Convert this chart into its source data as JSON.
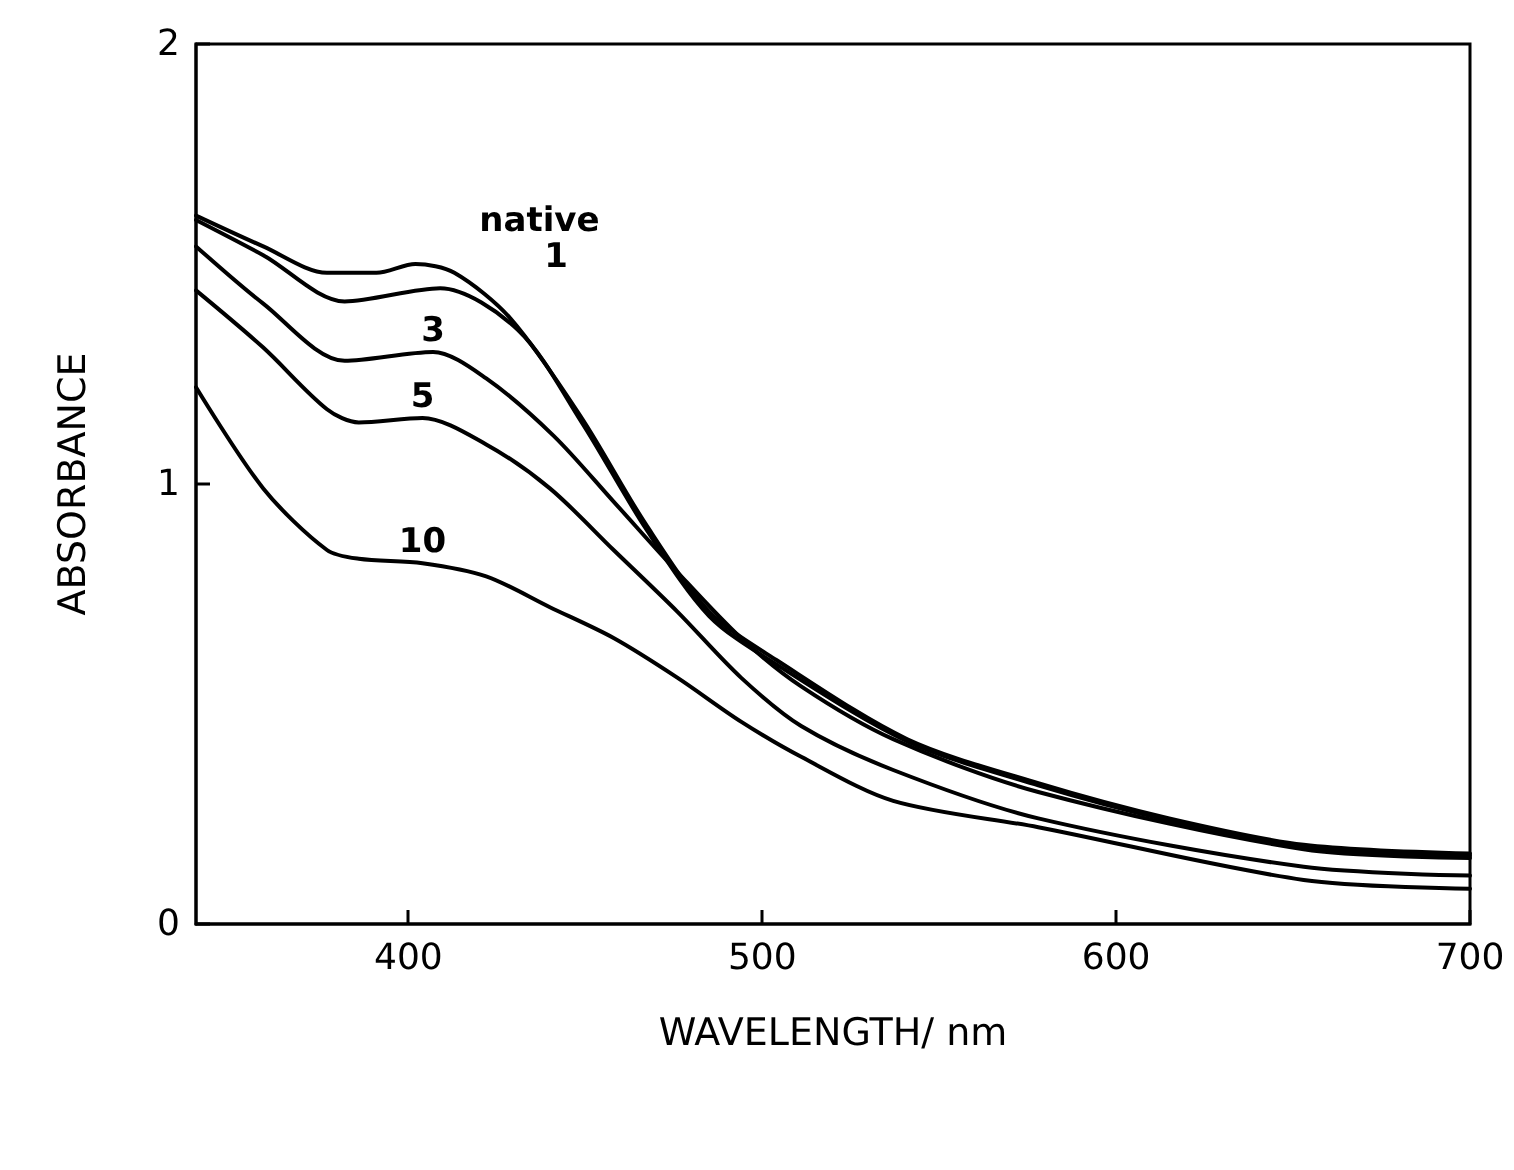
{
  "chart_data": {
    "type": "line",
    "xlabel": "WAVELENGTH/ nm",
    "ylabel": "ABSORBANCE",
    "xlim": [
      340,
      700
    ],
    "xticks": [
      400,
      500,
      600,
      700
    ],
    "ylim": [
      0,
      2
    ],
    "yticks": [
      0,
      1,
      2
    ],
    "grid": false,
    "legend": false,
    "marker": "none",
    "line_style": "solid",
    "series": [
      {
        "name": "native",
        "color": "#000000",
        "x": [
          340,
          359,
          377,
          391,
          402,
          413,
          429,
          449,
          467,
          485,
          504,
          541,
          578,
          615,
          653,
          700
        ],
        "values": [
          1.61,
          1.54,
          1.48,
          1.48,
          1.5,
          1.48,
          1.375,
          1.15,
          0.91,
          0.71,
          0.6,
          0.42,
          0.32,
          0.24,
          0.18,
          0.16
        ]
      },
      {
        "name": "1",
        "color": "#000000",
        "x": [
          340,
          359,
          382,
          409,
          431,
          449,
          467,
          485,
          504,
          541,
          578,
          615,
          653,
          700
        ],
        "values": [
          1.6,
          1.52,
          1.415,
          1.445,
          1.35,
          1.14,
          0.9,
          0.7,
          0.59,
          0.415,
          0.315,
          0.235,
          0.175,
          0.155
        ]
      },
      {
        "name": "3",
        "color": "#000000",
        "x": [
          340,
          359,
          382,
          407,
          422,
          441,
          458,
          476,
          494,
          511,
          537,
          578,
          653,
          700
        ],
        "values": [
          1.54,
          1.41,
          1.28,
          1.3,
          1.24,
          1.11,
          0.96,
          0.8,
          0.65,
          0.54,
          0.42,
          0.3,
          0.17,
          0.15
        ]
      },
      {
        "name": "5",
        "color": "#000000",
        "x": [
          340,
          359,
          377,
          386,
          404,
          422,
          440,
          458,
          476,
          494,
          511,
          537,
          578,
          653,
          700
        ],
        "values": [
          1.44,
          1.31,
          1.17,
          1.14,
          1.15,
          1.09,
          0.99,
          0.85,
          0.71,
          0.56,
          0.45,
          0.35,
          0.24,
          0.13,
          0.11
        ]
      },
      {
        "name": "10",
        "color": "#000000",
        "x": [
          340,
          359,
          377,
          386,
          404,
          422,
          440,
          458,
          476,
          494,
          511,
          537,
          578,
          653,
          700
        ],
        "values": [
          1.22,
          0.99,
          0.85,
          0.83,
          0.82,
          0.79,
          0.72,
          0.65,
          0.56,
          0.46,
          0.38,
          0.28,
          0.22,
          0.1,
          0.08
        ]
      }
    ]
  }
}
